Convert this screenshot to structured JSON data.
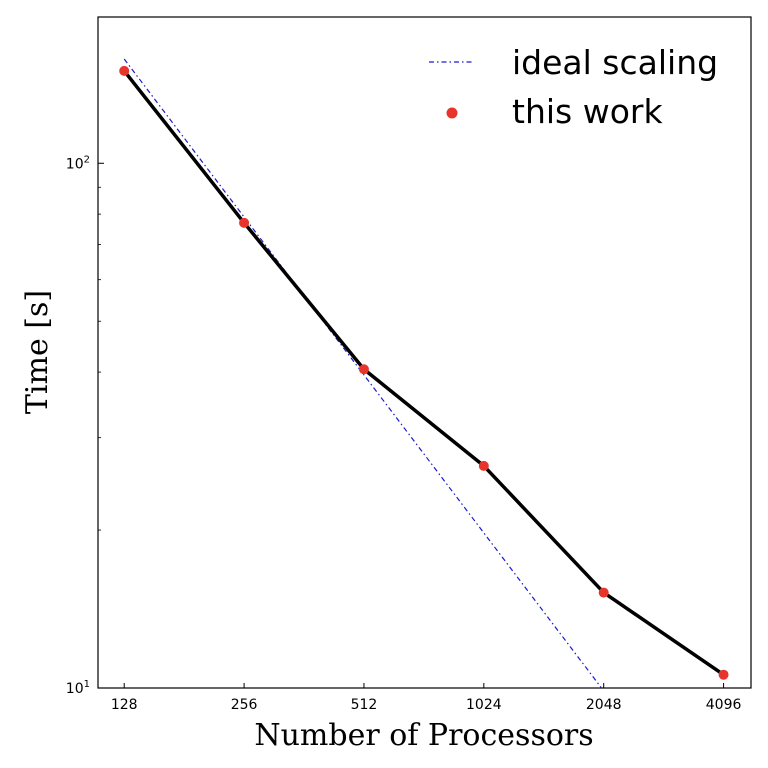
{
  "chart_data": {
    "type": "line",
    "title": "",
    "xlabel": "Number of Processors",
    "ylabel": "Time [s]",
    "xscale": "log2",
    "yscale": "log10",
    "xlim": [
      110,
      4800
    ],
    "ylim": [
      10,
      190
    ],
    "x_ticks": [
      128,
      256,
      512,
      1024,
      2048,
      4096
    ],
    "x_tick_labels": [
      "128",
      "256",
      "512",
      "1024",
      "2048",
      "4096"
    ],
    "y_ticks": [
      {
        "value": 10,
        "base": "10",
        "exp": "1"
      },
      {
        "value": 100,
        "base": "10",
        "exp": "2"
      }
    ],
    "grid": false,
    "legend_position": "top-right",
    "series": [
      {
        "name": "ideal scaling",
        "style": "dash-dot",
        "color": "#1a1acc",
        "x": [
          128,
          256,
          512,
          1024,
          2048,
          2200
        ],
        "y": [
          158,
          79,
          39.5,
          19.75,
          9.875,
          9.2
        ]
      },
      {
        "name": "this work",
        "style": "line-with-markers",
        "color": "#000000",
        "marker_color": "#e8352b",
        "x": [
          128,
          256,
          512,
          1024,
          2048,
          4096
        ],
        "y": [
          150,
          77,
          40.5,
          26.5,
          15.2,
          10.6
        ]
      }
    ]
  }
}
